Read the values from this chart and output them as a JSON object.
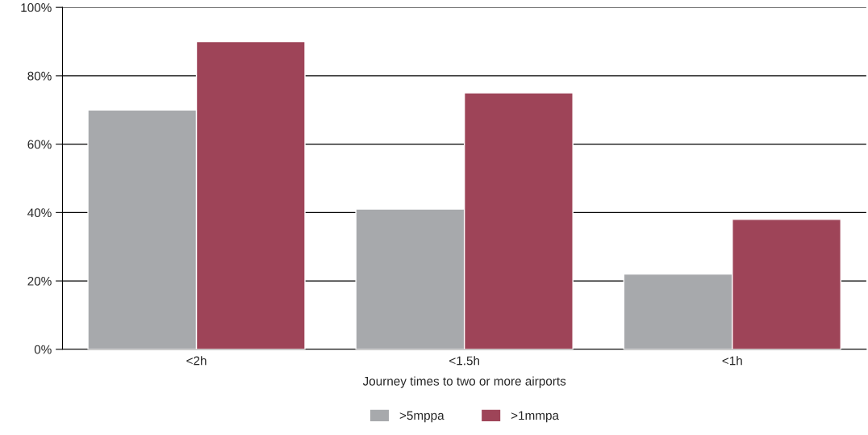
{
  "chart_data": {
    "type": "bar",
    "xlabel": "Journey times to two or more airports",
    "categories": [
      "<2h",
      "<1.5h",
      "<1h"
    ],
    "series": [
      {
        "name": ">5mppa",
        "color": "#a7a9ac",
        "values": [
          70,
          41,
          22
        ]
      },
      {
        "name": ">1mmpa",
        "color": "#9e4458",
        "values": [
          90,
          75,
          38
        ]
      }
    ],
    "ylim": [
      0,
      100
    ],
    "yticks": [
      {
        "value": 0,
        "label": "0%"
      },
      {
        "value": 20,
        "label": "20%"
      },
      {
        "value": 40,
        "label": "40%"
      },
      {
        "value": 60,
        "label": "60%"
      },
      {
        "value": 80,
        "label": "80%"
      },
      {
        "value": 100,
        "label": "100%"
      }
    ],
    "grid": "y",
    "legend": "bottom"
  }
}
